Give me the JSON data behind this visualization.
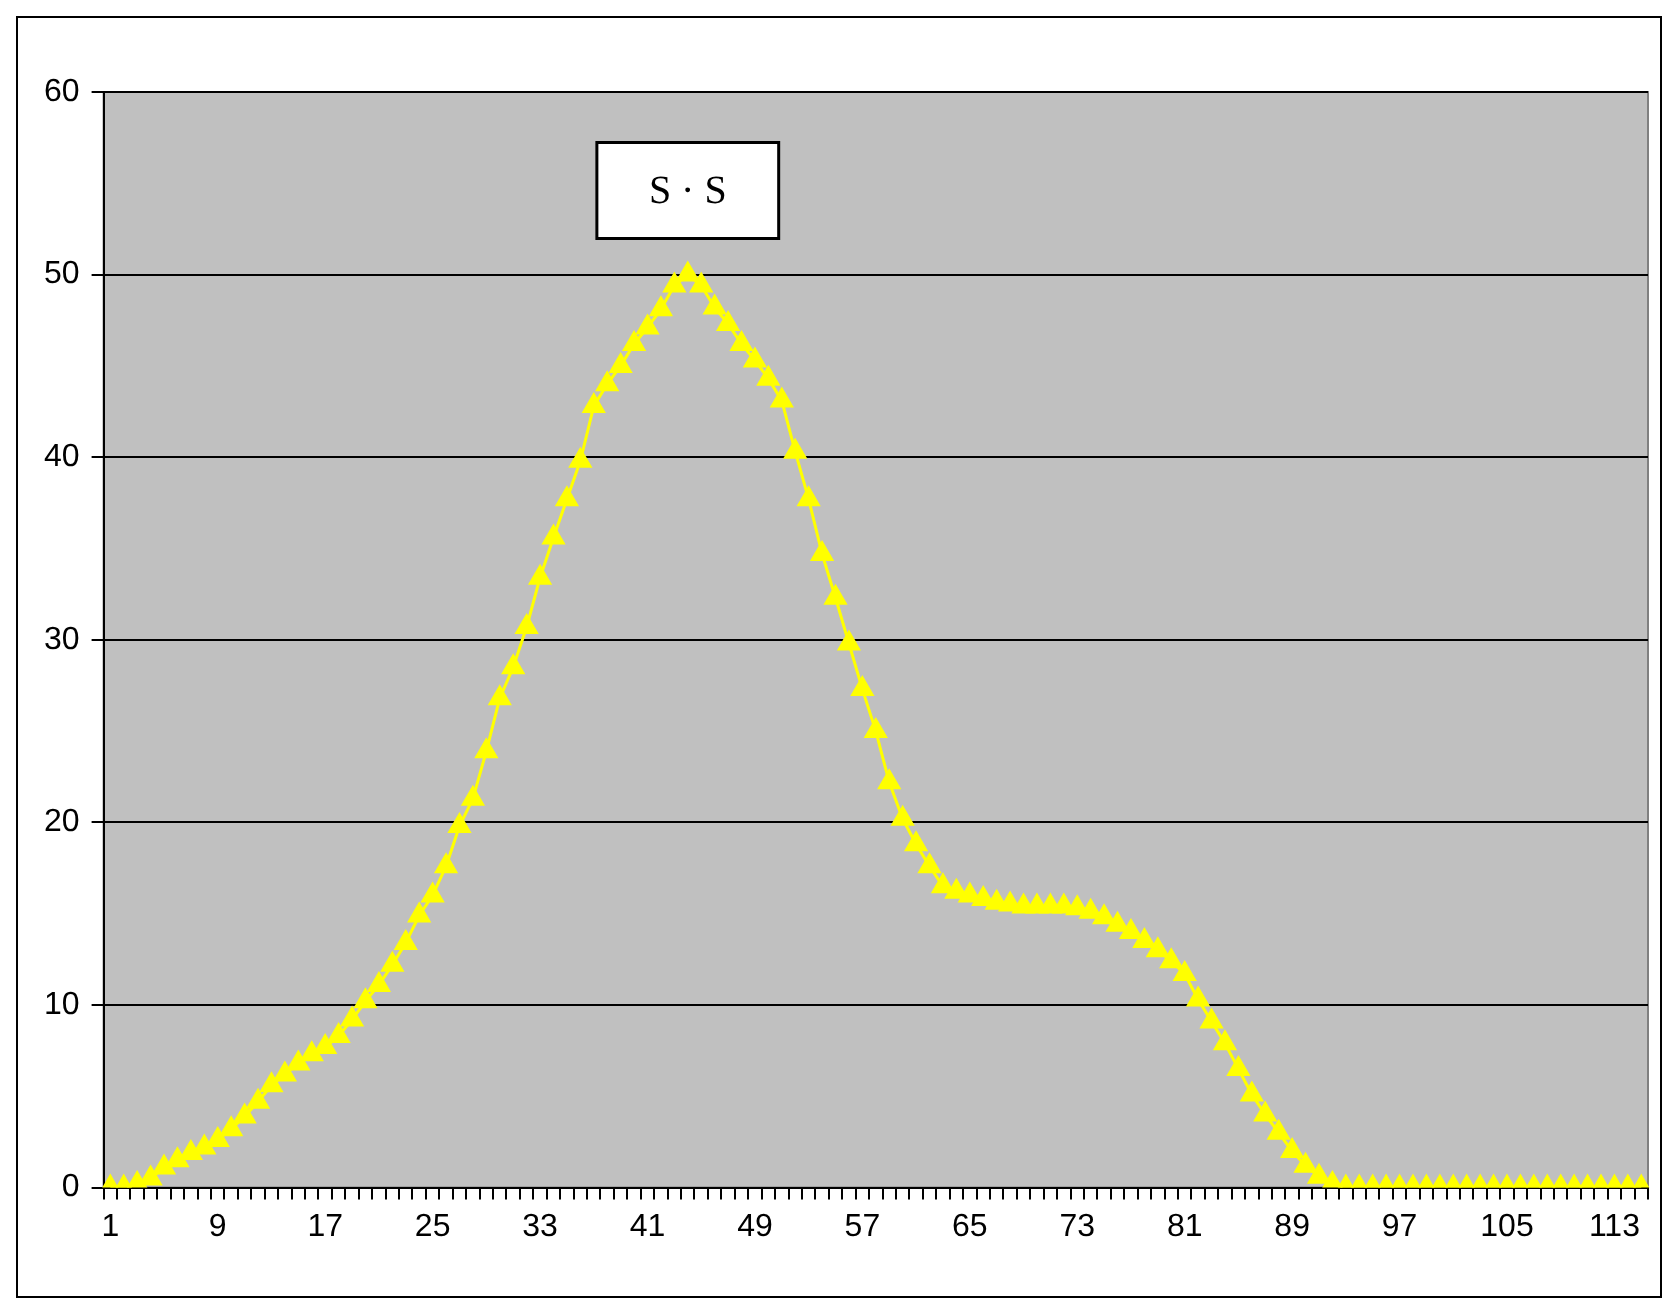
{
  "chart_data": {
    "type": "line",
    "categories": [
      "1",
      null,
      null,
      null,
      null,
      null,
      null,
      null,
      "9",
      null,
      null,
      null,
      null,
      null,
      null,
      null,
      "17",
      null,
      null,
      null,
      null,
      null,
      null,
      null,
      "25",
      null,
      null,
      null,
      null,
      null,
      null,
      null,
      "33",
      null,
      null,
      null,
      null,
      null,
      null,
      null,
      "41",
      null,
      null,
      null,
      null,
      null,
      null,
      null,
      "49",
      null,
      null,
      null,
      null,
      null,
      null,
      null,
      "57",
      null,
      null,
      null,
      null,
      null,
      null,
      null,
      "65",
      null,
      null,
      null,
      null,
      null,
      null,
      null,
      "73",
      null,
      null,
      null,
      null,
      null,
      null,
      null,
      "81",
      null,
      null,
      null,
      null,
      null,
      null,
      null,
      "89",
      null,
      null,
      null,
      null,
      null,
      null,
      null,
      "97",
      null,
      null,
      null,
      null,
      null,
      null,
      null,
      "105",
      null,
      null,
      null,
      null,
      null,
      null,
      null,
      "113",
      null,
      null
    ],
    "series": [
      {
        "color": "#ffff00",
        "values": [
          0,
          0,
          0.2,
          0.5,
          1.1,
          1.5,
          1.9,
          2.2,
          2.6,
          3.2,
          3.9,
          4.7,
          5.6,
          6.2,
          6.8,
          7.3,
          7.7,
          8.3,
          9.2,
          10.2,
          11.1,
          12.2,
          13.4,
          14.9,
          16.0,
          17.6,
          19.8,
          21.3,
          23.9,
          26.8,
          28.5,
          30.7,
          33.4,
          35.6,
          37.7,
          39.8,
          42.8,
          44.0,
          45.0,
          46.2,
          47.1,
          48.1,
          49.4,
          50.0,
          49.4,
          48.2,
          47.3,
          46.2,
          45.3,
          44.3,
          43.1,
          40.3,
          37.7,
          34.7,
          32.3,
          29.8,
          27.3,
          25.0,
          22.2,
          20.2,
          18.8,
          17.6,
          16.5,
          16.2,
          16.0,
          15.8,
          15.6,
          15.5,
          15.4,
          15.4,
          15.4,
          15.4,
          15.3,
          15.1,
          14.8,
          14.4,
          14.0,
          13.5,
          13.0,
          12.4,
          11.7,
          10.3,
          9.1,
          7.9,
          6.5,
          5.1,
          4.0,
          3.0,
          2.0,
          1.2,
          0.6,
          0.2,
          0,
          0,
          0,
          0,
          0,
          0,
          0,
          0,
          0,
          0,
          0,
          0,
          0,
          0,
          0,
          0,
          0,
          0,
          0,
          0,
          0,
          0,
          0
        ]
      }
    ],
    "ylim": [
      0,
      60
    ],
    "yticks": [
      0,
      10,
      20,
      30,
      40,
      50,
      60
    ],
    "grid": "y",
    "marker": "triangle",
    "annotations": [
      "S · S"
    ]
  }
}
